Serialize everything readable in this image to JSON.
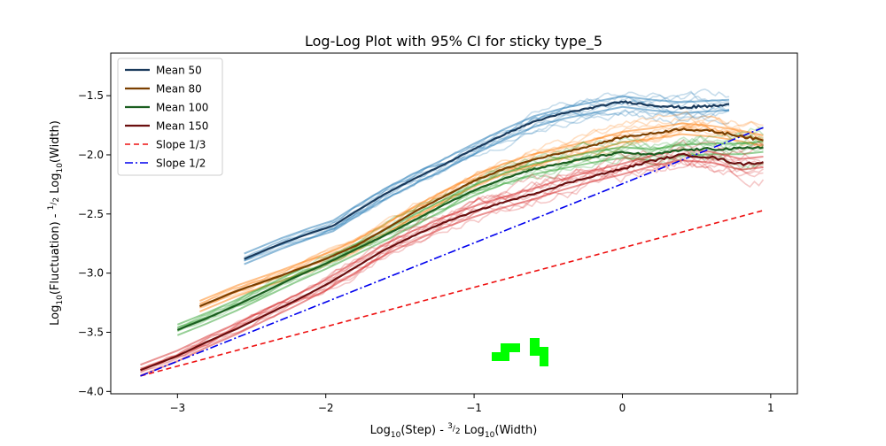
{
  "chart_data": {
    "type": "line",
    "title": "Log-Log Plot with 95% CI for sticky type_5",
    "xlabel": "Log10(Step) - 3/2 Log10(Width)",
    "ylabel": "Log10(Fluctuation) - 1/2 Log10(Width)",
    "xlim": [
      -3.45,
      1.18
    ],
    "ylim": [
      -4.02,
      -1.14
    ],
    "xticks": [
      -3,
      -2,
      -1,
      0,
      1
    ],
    "yticks": [
      -4.0,
      -3.5,
      -3.0,
      -2.5,
      -2.0,
      -1.5
    ],
    "xtick_labels": [
      "−3",
      "−2",
      "−1",
      "0",
      "1"
    ],
    "ytick_labels": [
      "−4.0",
      "−3.5",
      "−3.0",
      "−2.5",
      "−2.0",
      "−1.5"
    ],
    "legend_position": "top-left",
    "grid": false,
    "series": [
      {
        "name": "Mean 50",
        "kind": "mean",
        "color": "#1a3a5c",
        "band_color": "#1f77b4",
        "x": [
          -2.55,
          -2.3,
          -2.1,
          -1.95,
          -1.8,
          -1.6,
          -1.4,
          -1.2,
          -1.0,
          -0.8,
          -0.6,
          -0.4,
          -0.2,
          0.0,
          0.2,
          0.4,
          0.72
        ],
        "y": [
          -2.88,
          -2.75,
          -2.66,
          -2.6,
          -2.48,
          -2.33,
          -2.2,
          -2.08,
          -1.95,
          -1.83,
          -1.72,
          -1.65,
          -1.6,
          -1.55,
          -1.58,
          -1.6,
          -1.58
        ]
      },
      {
        "name": "Mean 80",
        "kind": "mean",
        "color": "#7b3f00",
        "band_color": "#ff7f0e",
        "x": [
          -2.85,
          -2.6,
          -2.3,
          -2.0,
          -1.8,
          -1.6,
          -1.4,
          -1.2,
          -1.0,
          -0.8,
          -0.6,
          -0.4,
          -0.2,
          0.0,
          0.2,
          0.4,
          0.6,
          0.8,
          0.95
        ],
        "y": [
          -3.28,
          -3.15,
          -3.02,
          -2.88,
          -2.77,
          -2.63,
          -2.48,
          -2.35,
          -2.22,
          -2.12,
          -2.04,
          -1.98,
          -1.92,
          -1.85,
          -1.82,
          -1.78,
          -1.8,
          -1.84,
          -1.88
        ]
      },
      {
        "name": "Mean 100",
        "kind": "mean",
        "color": "#1b5e20",
        "band_color": "#2ca02c",
        "x": [
          -3.0,
          -2.8,
          -2.6,
          -2.4,
          -2.2,
          -2.0,
          -1.8,
          -1.6,
          -1.4,
          -1.2,
          -1.0,
          -0.8,
          -0.6,
          -0.4,
          -0.2,
          0.0,
          0.2,
          0.4,
          0.6,
          0.8,
          0.95
        ],
        "y": [
          -3.48,
          -3.38,
          -3.27,
          -3.15,
          -3.03,
          -2.92,
          -2.8,
          -2.68,
          -2.55,
          -2.42,
          -2.3,
          -2.2,
          -2.12,
          -2.07,
          -2.02,
          -1.98,
          -2.0,
          -1.96,
          -1.95,
          -1.95,
          -1.93
        ]
      },
      {
        "name": "Mean 150",
        "kind": "mean",
        "color": "#6b0f0f",
        "band_color": "#d62728",
        "x": [
          -3.25,
          -3.0,
          -2.8,
          -2.6,
          -2.4,
          -2.2,
          -2.0,
          -1.8,
          -1.6,
          -1.4,
          -1.2,
          -1.0,
          -0.8,
          -0.6,
          -0.4,
          -0.2,
          0.0,
          0.2,
          0.4,
          0.6,
          0.8,
          0.95
        ],
        "y": [
          -3.82,
          -3.7,
          -3.58,
          -3.47,
          -3.35,
          -3.23,
          -3.1,
          -2.95,
          -2.8,
          -2.68,
          -2.57,
          -2.48,
          -2.4,
          -2.33,
          -2.25,
          -2.18,
          -2.12,
          -2.05,
          -2.0,
          -2.02,
          -2.08,
          -2.06
        ]
      },
      {
        "name": "Slope 1/3",
        "kind": "reference",
        "color": "#ee1111",
        "dash": "6,4",
        "x": [
          -3.25,
          0.95
        ],
        "y": [
          -3.87,
          -2.47
        ]
      },
      {
        "name": "Slope 1/2",
        "kind": "reference",
        "color": "#0000ee",
        "dash": "9,3,2,3",
        "x": [
          -3.25,
          0.95
        ],
        "y": [
          -3.87,
          -1.77
        ]
      }
    ],
    "artifact_color": "#00ff00"
  }
}
